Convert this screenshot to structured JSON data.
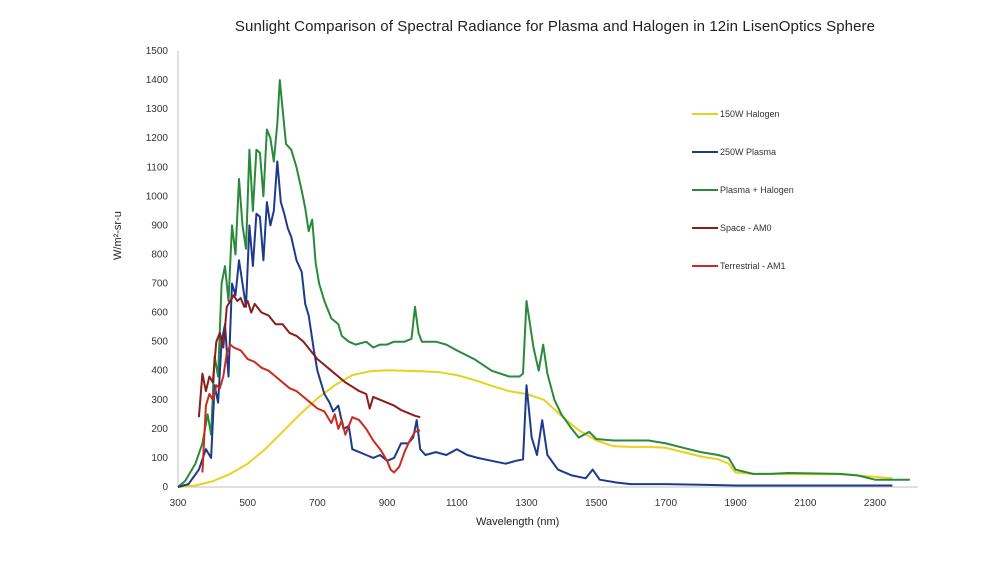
{
  "chart_data": {
    "type": "line",
    "title": "Sunlight Comparison  of Spectral Radiance for Plasma and Halogen in 12in LisenOptics Sphere",
    "xlabel": "Wavelength (nm)",
    "ylabel": "W/m²-sr-u",
    "xlim": [
      300,
      2400
    ],
    "ylim": [
      0,
      1500
    ],
    "xticks": [
      300,
      500,
      700,
      900,
      1100,
      1300,
      1500,
      1700,
      1900,
      2100,
      2300
    ],
    "yticks": [
      0,
      100,
      200,
      300,
      400,
      500,
      600,
      700,
      800,
      900,
      1000,
      1100,
      1200,
      1300,
      1400,
      1500
    ],
    "grid": false,
    "legend_position": "right",
    "series": [
      {
        "name": "150W Halogen",
        "color": "#e8d21e",
        "points": [
          [
            300,
            0
          ],
          [
            350,
            5
          ],
          [
            400,
            20
          ],
          [
            450,
            45
          ],
          [
            500,
            80
          ],
          [
            550,
            130
          ],
          [
            600,
            190
          ],
          [
            650,
            250
          ],
          [
            700,
            305
          ],
          [
            750,
            350
          ],
          [
            800,
            385
          ],
          [
            850,
            398
          ],
          [
            900,
            402
          ],
          [
            950,
            400
          ],
          [
            1000,
            398
          ],
          [
            1050,
            395
          ],
          [
            1100,
            385
          ],
          [
            1150,
            368
          ],
          [
            1200,
            348
          ],
          [
            1250,
            330
          ],
          [
            1300,
            320
          ],
          [
            1350,
            300
          ],
          [
            1400,
            245
          ],
          [
            1450,
            195
          ],
          [
            1500,
            160
          ],
          [
            1550,
            140
          ],
          [
            1600,
            138
          ],
          [
            1650,
            138
          ],
          [
            1700,
            135
          ],
          [
            1750,
            120
          ],
          [
            1800,
            105
          ],
          [
            1850,
            95
          ],
          [
            1880,
            80
          ],
          [
            1900,
            50
          ],
          [
            1950,
            45
          ],
          [
            2000,
            45
          ],
          [
            2100,
            44
          ],
          [
            2200,
            44
          ],
          [
            2300,
            35
          ],
          [
            2350,
            30
          ]
        ]
      },
      {
        "name": "250W Plasma",
        "color": "#1d3a8c",
        "points": [
          [
            300,
            0
          ],
          [
            330,
            10
          ],
          [
            360,
            60
          ],
          [
            380,
            130
          ],
          [
            395,
            100
          ],
          [
            405,
            350
          ],
          [
            415,
            290
          ],
          [
            425,
            500
          ],
          [
            435,
            560
          ],
          [
            445,
            380
          ],
          [
            455,
            700
          ],
          [
            465,
            660
          ],
          [
            475,
            780
          ],
          [
            485,
            700
          ],
          [
            495,
            620
          ],
          [
            505,
            900
          ],
          [
            515,
            760
          ],
          [
            525,
            940
          ],
          [
            535,
            930
          ],
          [
            545,
            780
          ],
          [
            555,
            980
          ],
          [
            565,
            900
          ],
          [
            575,
            950
          ],
          [
            585,
            1120
          ],
          [
            595,
            980
          ],
          [
            605,
            940
          ],
          [
            615,
            890
          ],
          [
            625,
            860
          ],
          [
            640,
            780
          ],
          [
            655,
            740
          ],
          [
            665,
            630
          ],
          [
            675,
            590
          ],
          [
            690,
            470
          ],
          [
            700,
            400
          ],
          [
            720,
            320
          ],
          [
            735,
            290
          ],
          [
            745,
            260
          ],
          [
            760,
            280
          ],
          [
            775,
            200
          ],
          [
            790,
            210
          ],
          [
            800,
            130
          ],
          [
            820,
            120
          ],
          [
            840,
            110
          ],
          [
            860,
            100
          ],
          [
            880,
            110
          ],
          [
            900,
            90
          ],
          [
            920,
            100
          ],
          [
            940,
            150
          ],
          [
            960,
            150
          ],
          [
            975,
            170
          ],
          [
            985,
            230
          ],
          [
            995,
            130
          ],
          [
            1010,
            110
          ],
          [
            1040,
            120
          ],
          [
            1070,
            110
          ],
          [
            1100,
            130
          ],
          [
            1130,
            110
          ],
          [
            1160,
            100
          ],
          [
            1200,
            90
          ],
          [
            1240,
            80
          ],
          [
            1270,
            90
          ],
          [
            1290,
            95
          ],
          [
            1300,
            350
          ],
          [
            1315,
            170
          ],
          [
            1330,
            110
          ],
          [
            1345,
            230
          ],
          [
            1360,
            110
          ],
          [
            1390,
            60
          ],
          [
            1430,
            40
          ],
          [
            1470,
            30
          ],
          [
            1490,
            60
          ],
          [
            1510,
            25
          ],
          [
            1560,
            15
          ],
          [
            1600,
            10
          ],
          [
            1700,
            10
          ],
          [
            1800,
            8
          ],
          [
            1900,
            5
          ],
          [
            2000,
            5
          ],
          [
            2100,
            5
          ],
          [
            2200,
            5
          ],
          [
            2300,
            5
          ],
          [
            2350,
            5
          ]
        ]
      },
      {
        "name": "Plasma + Halogen",
        "color": "#2a8a3c",
        "points": [
          [
            300,
            0
          ],
          [
            320,
            20
          ],
          [
            350,
            80
          ],
          [
            370,
            150
          ],
          [
            385,
            250
          ],
          [
            395,
            180
          ],
          [
            405,
            450
          ],
          [
            415,
            380
          ],
          [
            425,
            700
          ],
          [
            435,
            760
          ],
          [
            445,
            640
          ],
          [
            455,
            900
          ],
          [
            465,
            800
          ],
          [
            475,
            1060
          ],
          [
            485,
            900
          ],
          [
            495,
            820
          ],
          [
            505,
            1160
          ],
          [
            515,
            950
          ],
          [
            525,
            1160
          ],
          [
            535,
            1150
          ],
          [
            545,
            1000
          ],
          [
            555,
            1230
          ],
          [
            565,
            1200
          ],
          [
            575,
            1120
          ],
          [
            585,
            1250
          ],
          [
            592,
            1400
          ],
          [
            600,
            1300
          ],
          [
            610,
            1180
          ],
          [
            625,
            1160
          ],
          [
            640,
            1100
          ],
          [
            655,
            1020
          ],
          [
            665,
            960
          ],
          [
            675,
            880
          ],
          [
            685,
            920
          ],
          [
            695,
            770
          ],
          [
            705,
            700
          ],
          [
            720,
            640
          ],
          [
            740,
            580
          ],
          [
            760,
            560
          ],
          [
            770,
            520
          ],
          [
            790,
            500
          ],
          [
            810,
            490
          ],
          [
            840,
            500
          ],
          [
            860,
            480
          ],
          [
            880,
            490
          ],
          [
            900,
            490
          ],
          [
            920,
            500
          ],
          [
            950,
            500
          ],
          [
            970,
            510
          ],
          [
            980,
            620
          ],
          [
            990,
            530
          ],
          [
            1000,
            500
          ],
          [
            1040,
            500
          ],
          [
            1070,
            490
          ],
          [
            1100,
            470
          ],
          [
            1150,
            440
          ],
          [
            1200,
            400
          ],
          [
            1250,
            380
          ],
          [
            1280,
            380
          ],
          [
            1290,
            390
          ],
          [
            1300,
            640
          ],
          [
            1320,
            480
          ],
          [
            1335,
            400
          ],
          [
            1348,
            490
          ],
          [
            1360,
            390
          ],
          [
            1380,
            300
          ],
          [
            1400,
            250
          ],
          [
            1430,
            200
          ],
          [
            1450,
            170
          ],
          [
            1480,
            190
          ],
          [
            1500,
            165
          ],
          [
            1550,
            160
          ],
          [
            1650,
            160
          ],
          [
            1700,
            150
          ],
          [
            1750,
            135
          ],
          [
            1800,
            120
          ],
          [
            1850,
            110
          ],
          [
            1880,
            100
          ],
          [
            1900,
            60
          ],
          [
            1950,
            45
          ],
          [
            2000,
            45
          ],
          [
            2050,
            48
          ],
          [
            2200,
            45
          ],
          [
            2250,
            40
          ],
          [
            2300,
            25
          ],
          [
            2400,
            25
          ]
        ]
      },
      {
        "name": "Space - AM0",
        "color": "#8b1e1a",
        "points": [
          [
            360,
            240
          ],
          [
            370,
            390
          ],
          [
            380,
            330
          ],
          [
            390,
            380
          ],
          [
            400,
            360
          ],
          [
            410,
            500
          ],
          [
            420,
            530
          ],
          [
            430,
            480
          ],
          [
            440,
            620
          ],
          [
            450,
            640
          ],
          [
            460,
            660
          ],
          [
            470,
            640
          ],
          [
            480,
            650
          ],
          [
            490,
            620
          ],
          [
            500,
            640
          ],
          [
            510,
            600
          ],
          [
            520,
            630
          ],
          [
            540,
            600
          ],
          [
            560,
            590
          ],
          [
            580,
            560
          ],
          [
            600,
            560
          ],
          [
            620,
            530
          ],
          [
            640,
            520
          ],
          [
            660,
            500
          ],
          [
            680,
            470
          ],
          [
            700,
            440
          ],
          [
            720,
            420
          ],
          [
            740,
            400
          ],
          [
            760,
            380
          ],
          [
            780,
            360
          ],
          [
            800,
            345
          ],
          [
            820,
            330
          ],
          [
            840,
            320
          ],
          [
            850,
            270
          ],
          [
            860,
            310
          ],
          [
            880,
            300
          ],
          [
            900,
            290
          ],
          [
            920,
            280
          ],
          [
            940,
            265
          ],
          [
            960,
            255
          ],
          [
            980,
            245
          ],
          [
            995,
            240
          ]
        ]
      },
      {
        "name": "Terrestrial  - AM1",
        "color": "#cc2a1f",
        "points": [
          [
            370,
            50
          ],
          [
            380,
            280
          ],
          [
            390,
            320
          ],
          [
            400,
            300
          ],
          [
            410,
            350
          ],
          [
            420,
            340
          ],
          [
            430,
            380
          ],
          [
            440,
            460
          ],
          [
            450,
            490
          ],
          [
            460,
            480
          ],
          [
            480,
            470
          ],
          [
            500,
            440
          ],
          [
            520,
            430
          ],
          [
            540,
            410
          ],
          [
            560,
            400
          ],
          [
            580,
            380
          ],
          [
            600,
            360
          ],
          [
            620,
            340
          ],
          [
            640,
            330
          ],
          [
            660,
            310
          ],
          [
            680,
            290
          ],
          [
            700,
            270
          ],
          [
            720,
            260
          ],
          [
            740,
            220
          ],
          [
            750,
            250
          ],
          [
            760,
            200
          ],
          [
            770,
            230
          ],
          [
            780,
            180
          ],
          [
            800,
            240
          ],
          [
            820,
            230
          ],
          [
            840,
            200
          ],
          [
            860,
            160
          ],
          [
            880,
            130
          ],
          [
            900,
            90
          ],
          [
            910,
            60
          ],
          [
            920,
            50
          ],
          [
            935,
            70
          ],
          [
            950,
            120
          ],
          [
            965,
            160
          ],
          [
            980,
            190
          ],
          [
            995,
            195
          ]
        ]
      }
    ]
  }
}
